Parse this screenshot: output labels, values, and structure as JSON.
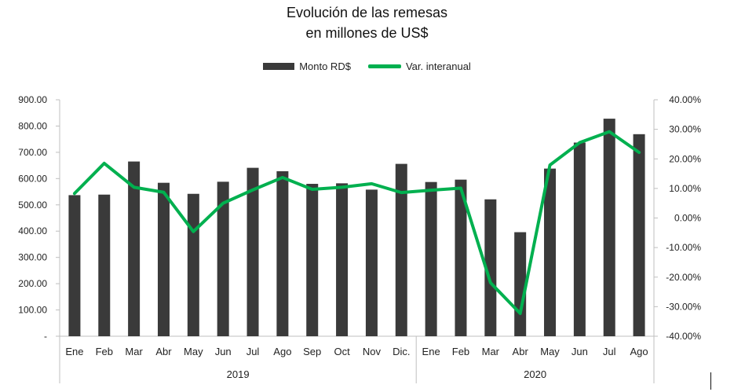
{
  "title_line1": "Evolución de las remesas",
  "title_line2": "en millones de US$",
  "chart_data": {
    "type": "bar+line",
    "categories": [
      "Ene",
      "Feb",
      "Mar",
      "Abr",
      "May",
      "Jun",
      "Jul",
      "Ago",
      "Sep",
      "Oct",
      "Nov",
      "Dic.",
      "Ene",
      "Feb",
      "Mar",
      "Abr",
      "May",
      "Jun",
      "Jul",
      "Ago"
    ],
    "groups": [
      {
        "label": "2019",
        "start": 0,
        "end": 11
      },
      {
        "label": "2020",
        "start": 12,
        "end": 19
      }
    ],
    "series": [
      {
        "name": "Monto RD$",
        "type": "bar",
        "axis": "left",
        "color": "#3a3a3a",
        "values": [
          537,
          539,
          665,
          584,
          542,
          588,
          641,
          628,
          580,
          582,
          558,
          656,
          587,
          596,
          521,
          396,
          638,
          737,
          828,
          769
        ]
      },
      {
        "name": "Var. interanual",
        "type": "line",
        "axis": "right",
        "color": "#00b04f",
        "values": [
          8.3,
          18.5,
          10.4,
          8.7,
          -4.6,
          5.0,
          9.5,
          13.7,
          9.7,
          10.4,
          11.6,
          8.6,
          9.4,
          10.1,
          -21.9,
          -32.3,
          17.9,
          25.5,
          29.2,
          22.2
        ]
      }
    ],
    "y_left": {
      "min": 0,
      "max": 900,
      "ticks": [
        "-",
        "100.00",
        "200.00",
        "300.00",
        "400.00",
        "500.00",
        "600.00",
        "700.00",
        "800.00",
        "900.00"
      ]
    },
    "y_right": {
      "min": -40,
      "max": 40,
      "ticks": [
        "-40.00%",
        "-30.00%",
        "-20.00%",
        "-10.00%",
        "0.00%",
        "10.00%",
        "20.00%",
        "30.00%",
        "40.00%"
      ]
    },
    "grid": false,
    "legend_position": "top"
  }
}
